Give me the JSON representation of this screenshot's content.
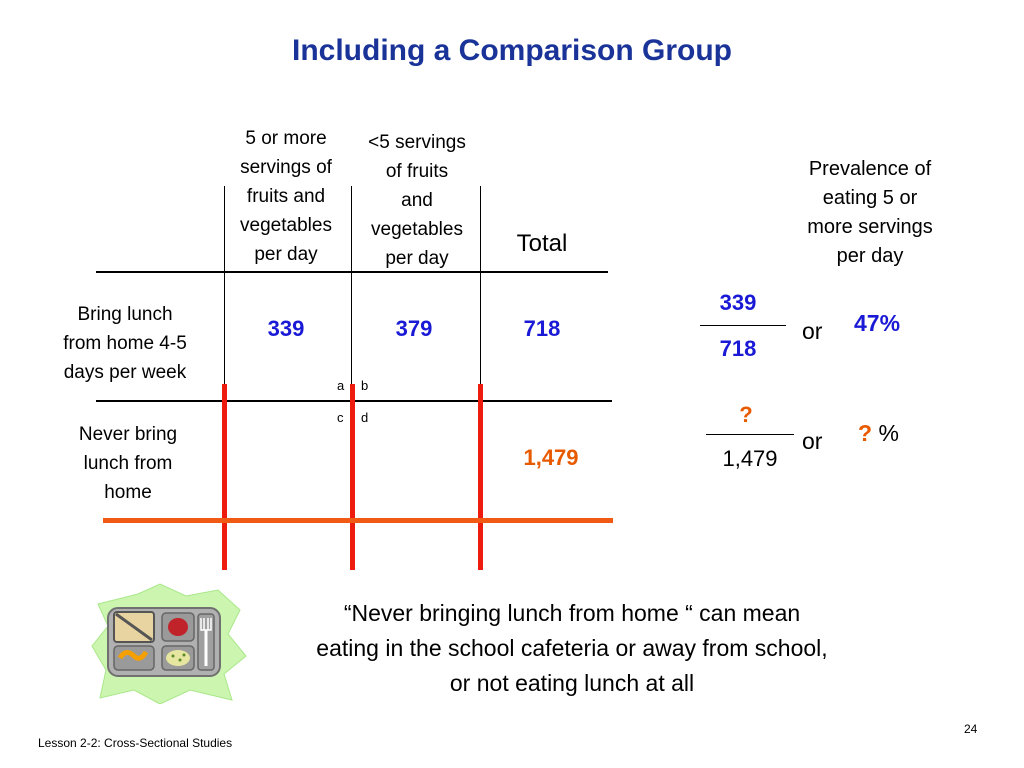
{
  "title": "Including a Comparison Group",
  "table": {
    "col_headers": [
      "5 or more servings of fruits and vegetables per day",
      "<5 servings of fruits and vegetables per day",
      "Total"
    ],
    "col1_lines": [
      "5 or more",
      "servings of",
      "fruits and",
      "vegetables",
      "per day"
    ],
    "col2_lines": [
      "<5 servings",
      "of fruits",
      "and",
      "vegetables",
      "per day"
    ],
    "col3": "Total",
    "rows": [
      {
        "label_lines": [
          "Bring lunch",
          "from home 4-5",
          "days per week"
        ],
        "c1": "339",
        "c2": "379",
        "total": "718"
      },
      {
        "label_lines": [
          "Never bring",
          "lunch from",
          "home"
        ],
        "c1": "",
        "c2": "",
        "total": "1,479"
      }
    ],
    "cell_letters": {
      "a": "a",
      "b": "b",
      "c": "c",
      "d": "d"
    }
  },
  "prevalence": {
    "header_lines": [
      "Prevalence of",
      "eating 5 or",
      "more servings",
      "per day"
    ],
    "row1": {
      "numerator": "339",
      "denominator": "718",
      "or": "or",
      "result": "47%"
    },
    "row2": {
      "numerator": "?",
      "denominator": "1,479",
      "or": "or",
      "result_q": "?",
      "result_pct": "%"
    }
  },
  "quote_lines": [
    "“Never bringing lunch from home “ can mean",
    "eating in the school cafeteria or away from school,",
    "or not eating lunch at all"
  ],
  "footer": "Lesson 2-2: Cross-Sectional Studies",
  "page_number": "24",
  "icon": "lunch-tray-icon",
  "colors": {
    "title": "#1a3399",
    "emphasis_blue": "#1a1ad6",
    "emphasis_orange": "#e85a00",
    "red_lines": "#ee1c0e",
    "burst": "#ccf5b0"
  }
}
